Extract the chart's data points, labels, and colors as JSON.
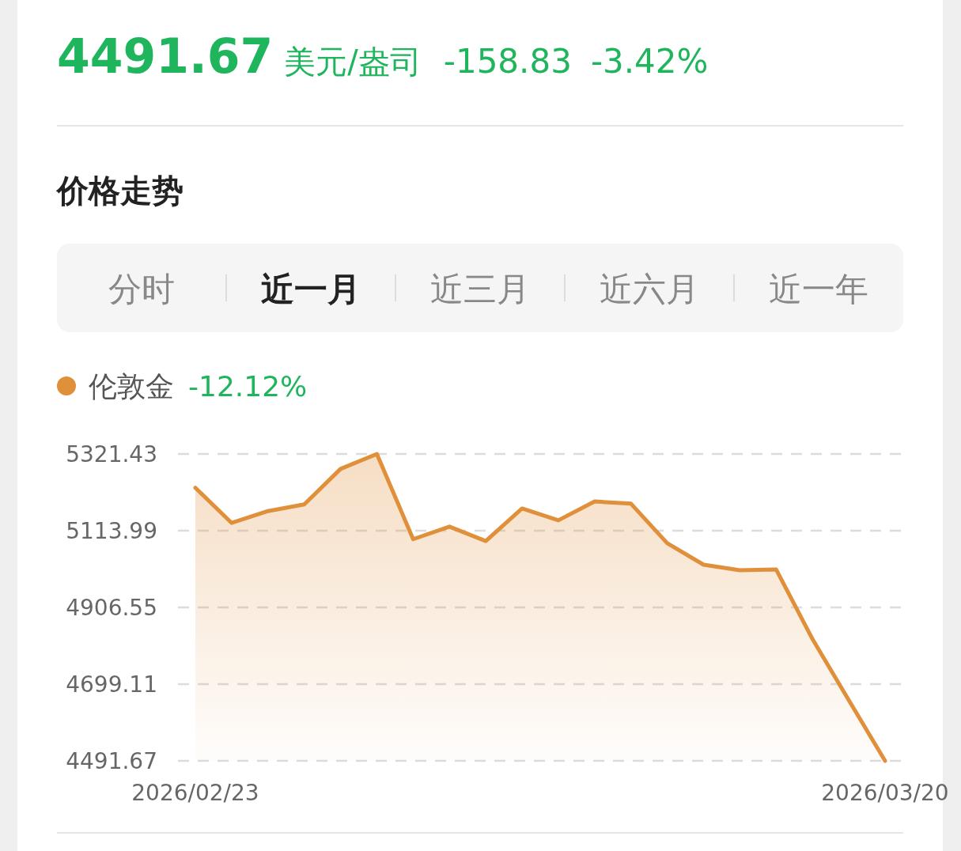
{
  "chart_data": {
    "type": "area",
    "title": "价格走势",
    "annotations": [
      "4491.67",
      "美元/盎司",
      "-158.83",
      "-3.42%",
      "分时",
      "近一月",
      "近三月",
      "近六月",
      "近一年",
      "-12.12%"
    ],
    "categories": [
      "2026/02/23",
      null,
      null,
      null,
      null,
      null,
      null,
      null,
      null,
      null,
      null,
      null,
      null,
      null,
      null,
      null,
      null,
      null,
      null,
      "2026/03/20"
    ],
    "series": [
      {
        "name": "伦敦金",
        "color": "#e08f3a",
        "values": [
          5230,
          5135,
          5167,
          5185,
          5281,
          5321.43,
          5091,
          5125,
          5086,
          5174,
          5142,
          5193,
          5187,
          5080,
          5022,
          5007,
          5009,
          4821,
          4656,
          4491.67
        ]
      }
    ],
    "ylim": [
      4491.67,
      5321.43
    ],
    "yticks": [
      4491.67,
      4699.11,
      4906.55,
      5113.99,
      5321.43
    ],
    "grid": "y",
    "legend": "top left",
    "marker": "none",
    "line_style": "solid"
  }
}
